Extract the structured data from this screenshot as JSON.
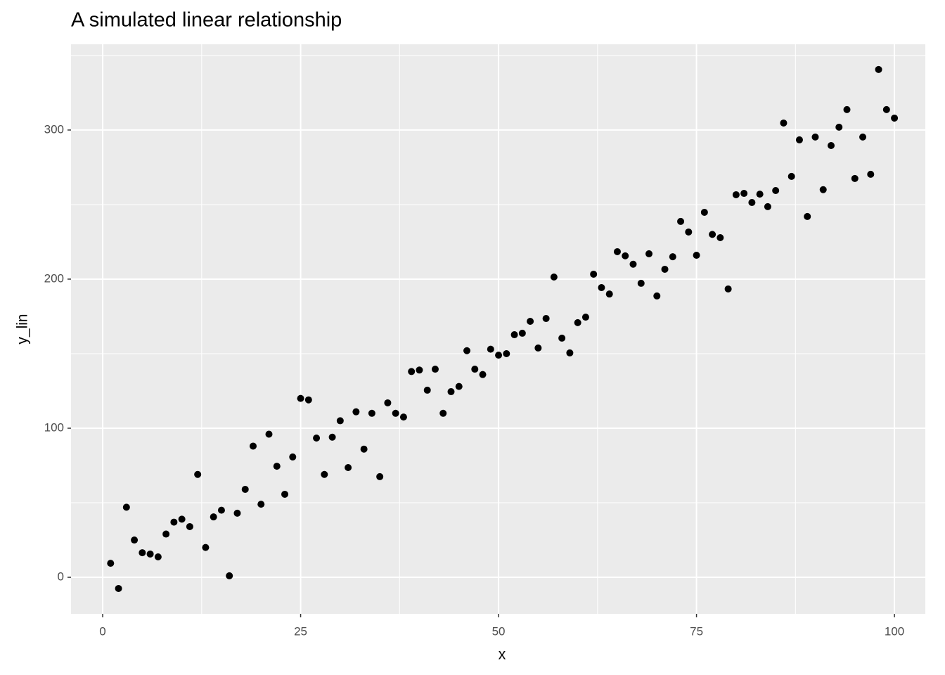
{
  "chart_data": {
    "type": "scatter",
    "title": "A simulated linear relationship",
    "x_label": "x",
    "y_label": "y_lin",
    "x": [
      1,
      2,
      3,
      4,
      5,
      6,
      7,
      8,
      9,
      10,
      11,
      12,
      13,
      14,
      15,
      16,
      17,
      18,
      19,
      20,
      21,
      22,
      23,
      24,
      25,
      26,
      27,
      28,
      29,
      30,
      31,
      32,
      33,
      34,
      35,
      36,
      37,
      38,
      39,
      40,
      41,
      42,
      43,
      44,
      45,
      46,
      47,
      48,
      49,
      50,
      51,
      52,
      53,
      54,
      55,
      56,
      57,
      58,
      59,
      60,
      61,
      62,
      63,
      64,
      65,
      66,
      67,
      68,
      69,
      70,
      71,
      72,
      73,
      74,
      75,
      76,
      77,
      78,
      79,
      80,
      81,
      82,
      83,
      84,
      85,
      86,
      87,
      88,
      89,
      90,
      91,
      92,
      93,
      94,
      95,
      96,
      97,
      98,
      99,
      100
    ],
    "values": [
      9.4,
      -7.5,
      47,
      25,
      16.5,
      15.6,
      13.7,
      29,
      37,
      39,
      34,
      69,
      20,
      40.5,
      45,
      1,
      43,
      59,
      88,
      49,
      96,
      74.5,
      55.7,
      80.7,
      120,
      119,
      93.4,
      69,
      94,
      105,
      73.6,
      111,
      86,
      110,
      67.5,
      117,
      110,
      107.5,
      138,
      139,
      125.5,
      139.6,
      110,
      124.5,
      128,
      152,
      139.6,
      136,
      153,
      149,
      150,
      162.7,
      163.7,
      171.7,
      153.8,
      173.6,
      201.4,
      160.4,
      150.5,
      170.8,
      174.5,
      203.3,
      194.3,
      190,
      218.4,
      215.6,
      210,
      197.2,
      217,
      188.7,
      206.6,
      215,
      238.7,
      231.6,
      216,
      244.8,
      230,
      227.8,
      193.4,
      256.6,
      257.5,
      251.4,
      257,
      248.6,
      259.4,
      304.7,
      268.9,
      293.4,
      242,
      295.3,
      260,
      289.6,
      301.9,
      313.7,
      267.5,
      295.3,
      270.3,
      340.6,
      313.7,
      308
    ],
    "color": "#000000",
    "xlim": [
      -4,
      103.9
    ],
    "ylim": [
      -24.5,
      357.5
    ],
    "xticks": [
      0,
      25,
      50,
      75,
      100
    ],
    "yticks": [
      0,
      100,
      200,
      300
    ],
    "x_minor_grid": [
      12.5,
      37.5,
      62.5,
      87.5
    ],
    "y_minor_grid": [
      50,
      150,
      250,
      350
    ],
    "grid": true,
    "panel_color": "#ebebeb"
  }
}
